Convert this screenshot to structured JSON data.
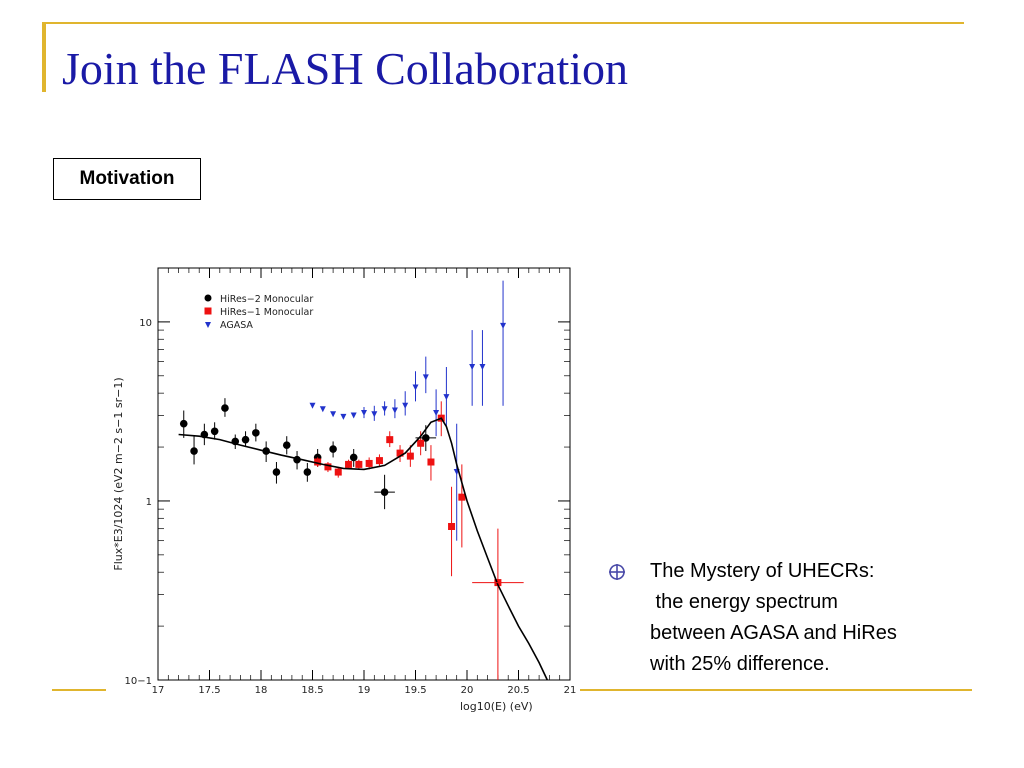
{
  "slide": {
    "title": "Join the FLASH Collaboration",
    "section_label": "Motivation",
    "bullet": {
      "icon": "circle-cross-bullet-icon",
      "lines": [
        "The Mystery of UHECRs:",
        " the energy spectrum",
        "between AGASA and HiRes",
        "with 25% difference."
      ]
    },
    "colors": {
      "title": "#1a1aa6",
      "accent_lines": "#e0b52e",
      "hires2": "#000000",
      "hires1": "#ee1111",
      "agasa": "#2233cc"
    }
  },
  "chart_data": {
    "type": "scatter",
    "xlabel": "log10(E) (eV)",
    "ylabel": "Flux*E3/1024 (eV2 m−2 s−1 sr−1)",
    "x_ticks": [
      "17",
      "17.5",
      "18",
      "18.5",
      "19",
      "19.5",
      "20",
      "20.5",
      "21"
    ],
    "y_ticks": [
      "10−1",
      "1",
      "10"
    ],
    "xlim": [
      17,
      21
    ],
    "ylim": [
      0.1,
      20
    ],
    "y_scale": "log",
    "legend": {
      "placement": "top-left",
      "entries": [
        "HiRes−2 Monocular",
        "HiRes−1 Monocular",
        "AGASA"
      ]
    },
    "series": [
      {
        "name": "HiRes−2 Monocular",
        "marker": "circle",
        "points": [
          {
            "x": 17.25,
            "y": 2.7,
            "lo": 2.25,
            "hi": 3.2
          },
          {
            "x": 17.35,
            "y": 1.9,
            "lo": 1.6,
            "hi": 2.3
          },
          {
            "x": 17.45,
            "y": 2.35,
            "lo": 2.05,
            "hi": 2.7
          },
          {
            "x": 17.55,
            "y": 2.45,
            "lo": 2.2,
            "hi": 2.75
          },
          {
            "x": 17.65,
            "y": 3.3,
            "lo": 2.95,
            "hi": 3.75
          },
          {
            "x": 17.75,
            "y": 2.15,
            "lo": 1.95,
            "hi": 2.35
          },
          {
            "x": 17.85,
            "y": 2.2,
            "lo": 2.0,
            "hi": 2.45
          },
          {
            "x": 17.95,
            "y": 2.4,
            "lo": 2.15,
            "hi": 2.7
          },
          {
            "x": 18.05,
            "y": 1.9,
            "lo": 1.65,
            "hi": 2.15
          },
          {
            "x": 18.15,
            "y": 1.45,
            "lo": 1.25,
            "hi": 1.65
          },
          {
            "x": 18.25,
            "y": 2.05,
            "lo": 1.82,
            "hi": 2.3
          },
          {
            "x": 18.35,
            "y": 1.7,
            "lo": 1.5,
            "hi": 1.9
          },
          {
            "x": 18.45,
            "y": 1.45,
            "lo": 1.28,
            "hi": 1.63
          },
          {
            "x": 18.55,
            "y": 1.75,
            "lo": 1.55,
            "hi": 1.95
          },
          {
            "x": 18.7,
            "y": 1.95,
            "lo": 1.75,
            "hi": 2.15
          },
          {
            "x": 18.9,
            "y": 1.75,
            "lo": 1.55,
            "hi": 1.95
          },
          {
            "x": 19.2,
            "y": 1.12,
            "lo": 0.9,
            "hi": 1.4
          },
          {
            "x": 19.6,
            "y": 2.25,
            "lo": 1.9,
            "hi": 2.65
          }
        ]
      },
      {
        "name": "HiRes−1 Monocular",
        "marker": "square",
        "points": [
          {
            "x": 18.55,
            "y": 1.65,
            "lo": 1.55,
            "hi": 1.75
          },
          {
            "x": 18.65,
            "y": 1.55,
            "lo": 1.45,
            "hi": 1.65
          },
          {
            "x": 18.75,
            "y": 1.45,
            "lo": 1.35,
            "hi": 1.55
          },
          {
            "x": 18.85,
            "y": 1.6,
            "lo": 1.5,
            "hi": 1.7
          },
          {
            "x": 18.95,
            "y": 1.6,
            "lo": 1.5,
            "hi": 1.7
          },
          {
            "x": 19.05,
            "y": 1.62,
            "lo": 1.5,
            "hi": 1.75
          },
          {
            "x": 19.15,
            "y": 1.68,
            "lo": 1.55,
            "hi": 1.82
          },
          {
            "x": 19.25,
            "y": 2.2,
            "lo": 2.0,
            "hi": 2.45
          },
          {
            "x": 19.35,
            "y": 1.85,
            "lo": 1.65,
            "hi": 2.05
          },
          {
            "x": 19.45,
            "y": 1.78,
            "lo": 1.55,
            "hi": 2.05
          },
          {
            "x": 19.55,
            "y": 2.1,
            "lo": 1.8,
            "hi": 2.45
          },
          {
            "x": 19.65,
            "y": 1.65,
            "lo": 1.3,
            "hi": 2.05
          },
          {
            "x": 19.75,
            "y": 2.9,
            "lo": 2.3,
            "hi": 3.6
          },
          {
            "x": 19.85,
            "y": 0.72,
            "lo": 0.38,
            "hi": 1.2
          },
          {
            "x": 19.95,
            "y": 1.05,
            "lo": 0.55,
            "hi": 1.6
          },
          {
            "x": 20.3,
            "y": 0.35,
            "lo": 0.1,
            "hi": 0.7
          }
        ]
      },
      {
        "name": "AGASA",
        "marker": "triangle-down",
        "points": [
          {
            "x": 18.5,
            "y": 3.4
          },
          {
            "x": 18.6,
            "y": 3.25
          },
          {
            "x": 18.7,
            "y": 3.05
          },
          {
            "x": 18.8,
            "y": 2.95
          },
          {
            "x": 18.9,
            "y": 3.0
          },
          {
            "x": 19.0,
            "y": 3.1,
            "lo": 2.9,
            "hi": 3.35
          },
          {
            "x": 19.1,
            "y": 3.05,
            "lo": 2.8,
            "hi": 3.4
          },
          {
            "x": 19.2,
            "y": 3.25,
            "lo": 3.0,
            "hi": 3.6
          },
          {
            "x": 19.3,
            "y": 3.2,
            "lo": 2.9,
            "hi": 3.7
          },
          {
            "x": 19.4,
            "y": 3.4,
            "lo": 3.0,
            "hi": 4.1
          },
          {
            "x": 19.5,
            "y": 4.3,
            "lo": 3.6,
            "hi": 5.3
          },
          {
            "x": 19.6,
            "y": 4.9,
            "lo": 4.0,
            "hi": 6.4
          },
          {
            "x": 19.7,
            "y": 3.1,
            "lo": 2.3,
            "hi": 4.2
          },
          {
            "x": 19.8,
            "y": 3.8,
            "lo": 2.6,
            "hi": 5.6
          },
          {
            "x": 19.9,
            "y": 1.45,
            "lo": 0.6,
            "hi": 2.7
          },
          {
            "x": 20.05,
            "y": 5.6,
            "lo": 3.4,
            "hi": 9.0
          },
          {
            "x": 20.15,
            "y": 5.6,
            "lo": 3.4,
            "hi": 9.0
          },
          {
            "x": 20.35,
            "y": 9.5,
            "lo": 3.4,
            "hi": 17.0
          }
        ]
      },
      {
        "name": "",
        "marker": "line",
        "points": [
          {
            "x": 17.2,
            "y": 2.35
          },
          {
            "x": 17.4,
            "y": 2.3
          },
          {
            "x": 17.6,
            "y": 2.2
          },
          {
            "x": 17.8,
            "y": 2.05
          },
          {
            "x": 18.0,
            "y": 1.92
          },
          {
            "x": 18.2,
            "y": 1.8
          },
          {
            "x": 18.4,
            "y": 1.7
          },
          {
            "x": 18.6,
            "y": 1.6
          },
          {
            "x": 18.8,
            "y": 1.52
          },
          {
            "x": 19.0,
            "y": 1.5
          },
          {
            "x": 19.2,
            "y": 1.58
          },
          {
            "x": 19.4,
            "y": 1.85
          },
          {
            "x": 19.55,
            "y": 2.3
          },
          {
            "x": 19.65,
            "y": 2.75
          },
          {
            "x": 19.75,
            "y": 2.9
          },
          {
            "x": 19.8,
            "y": 2.6
          },
          {
            "x": 19.85,
            "y": 2.1
          },
          {
            "x": 19.9,
            "y": 1.6
          },
          {
            "x": 20.0,
            "y": 1.0
          },
          {
            "x": 20.1,
            "y": 0.68
          },
          {
            "x": 20.2,
            "y": 0.48
          },
          {
            "x": 20.3,
            "y": 0.34
          },
          {
            "x": 20.4,
            "y": 0.26
          },
          {
            "x": 20.5,
            "y": 0.2
          },
          {
            "x": 20.6,
            "y": 0.16
          },
          {
            "x": 20.7,
            "y": 0.125
          },
          {
            "x": 20.78,
            "y": 0.1
          }
        ]
      }
    ]
  }
}
